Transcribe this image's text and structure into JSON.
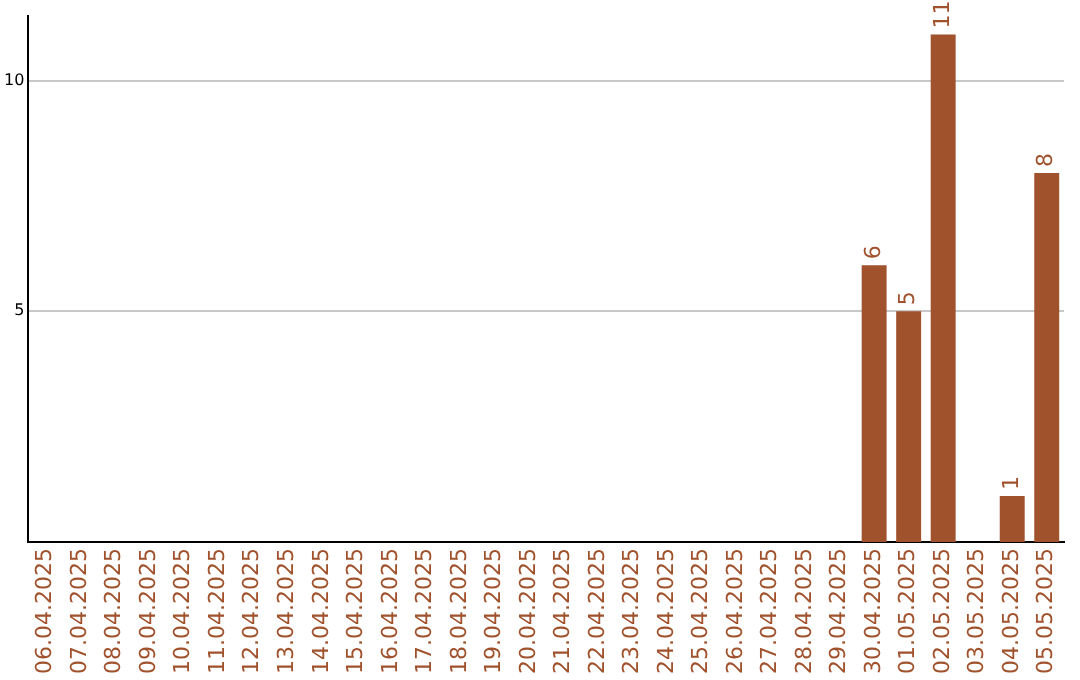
{
  "chart_data": {
    "type": "bar",
    "categories": [
      "06.04.2025",
      "07.04.2025",
      "08.04.2025",
      "09.04.2025",
      "10.04.2025",
      "11.04.2025",
      "12.04.2025",
      "13.04.2025",
      "14.04.2025",
      "15.04.2025",
      "16.04.2025",
      "17.04.2025",
      "18.04.2025",
      "19.04.2025",
      "20.04.2025",
      "21.04.2025",
      "22.04.2025",
      "23.04.2025",
      "24.04.2025",
      "25.04.2025",
      "26.04.2025",
      "27.04.2025",
      "28.04.2025",
      "29.04.2025",
      "30.04.2025",
      "01.05.2025",
      "02.05.2025",
      "03.05.2025",
      "04.05.2025",
      "05.05.2025"
    ],
    "values": [
      0,
      0,
      0,
      0,
      0,
      0,
      0,
      0,
      0,
      0,
      0,
      0,
      0,
      0,
      0,
      0,
      0,
      0,
      0,
      0,
      0,
      0,
      0,
      0,
      6,
      5,
      11,
      0,
      1,
      8
    ],
    "value_labels": [
      null,
      null,
      null,
      null,
      null,
      null,
      null,
      null,
      null,
      null,
      null,
      null,
      null,
      null,
      null,
      null,
      null,
      null,
      null,
      null,
      null,
      null,
      null,
      null,
      "6",
      "5",
      "11",
      null,
      "1",
      "8"
    ],
    "color": "#a0522d",
    "ylim": [
      0,
      11.4
    ],
    "yticks": [
      5,
      10
    ],
    "grid": "y"
  }
}
